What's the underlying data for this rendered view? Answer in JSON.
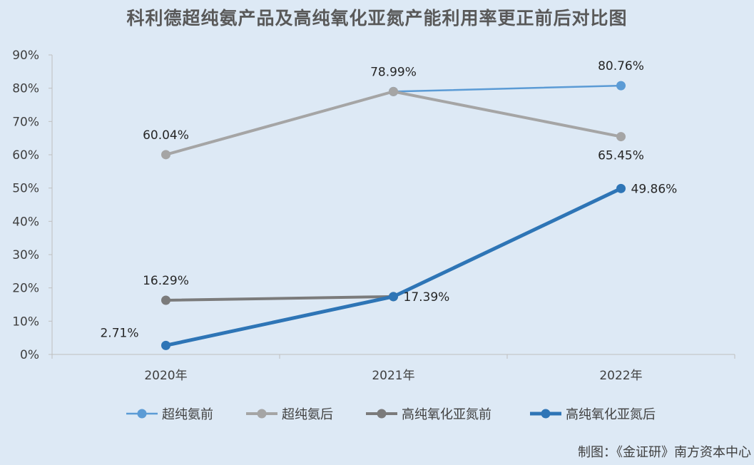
{
  "title": "科利德超纯氨产品及高纯氧化亚氮产能利用率更正前后对比图",
  "caption": "制图：《金证研》南方资本中心",
  "chart_data": {
    "type": "line",
    "title": "科利德超纯氨产品及高纯氧化亚氮产能利用率更正前后对比图",
    "xlabel": "",
    "ylabel": "",
    "categories": [
      "2020年",
      "2021年",
      "2022年"
    ],
    "ylim": [
      0,
      90
    ],
    "yticks": [
      0,
      10,
      20,
      30,
      40,
      50,
      60,
      70,
      80,
      90
    ],
    "ytick_labels": [
      "0%",
      "10%",
      "20%",
      "30%",
      "40%",
      "50%",
      "60%",
      "70%",
      "80%",
      "90%"
    ],
    "grid": false,
    "legend_position": "bottom",
    "series": [
      {
        "name": "超纯氨前",
        "color": "#5b9bd5",
        "values": [
          null,
          78.99,
          80.76
        ],
        "labels": [
          null,
          null,
          "80.76%"
        ],
        "label_side": [
          null,
          null,
          "above"
        ]
      },
      {
        "name": "超纯氨后",
        "color": "#a5a5a5",
        "values": [
          60.04,
          78.99,
          65.45
        ],
        "labels": [
          "60.04%",
          "78.99%",
          "65.45%"
        ],
        "label_side": [
          "above",
          "above",
          "below"
        ]
      },
      {
        "name": "高纯氧化亚氮前",
        "color": "#7b7b7b",
        "values": [
          16.29,
          17.39,
          null
        ],
        "labels": [
          "16.29%",
          null,
          null
        ],
        "label_side": [
          "above",
          null,
          null
        ]
      },
      {
        "name": "高纯氧化亚氮后",
        "color": "#2e75b6",
        "values": [
          2.71,
          17.39,
          49.86
        ],
        "labels": [
          "2.71%",
          "17.39%",
          "49.86%"
        ],
        "label_side": [
          "left",
          "right",
          "right"
        ]
      }
    ]
  }
}
